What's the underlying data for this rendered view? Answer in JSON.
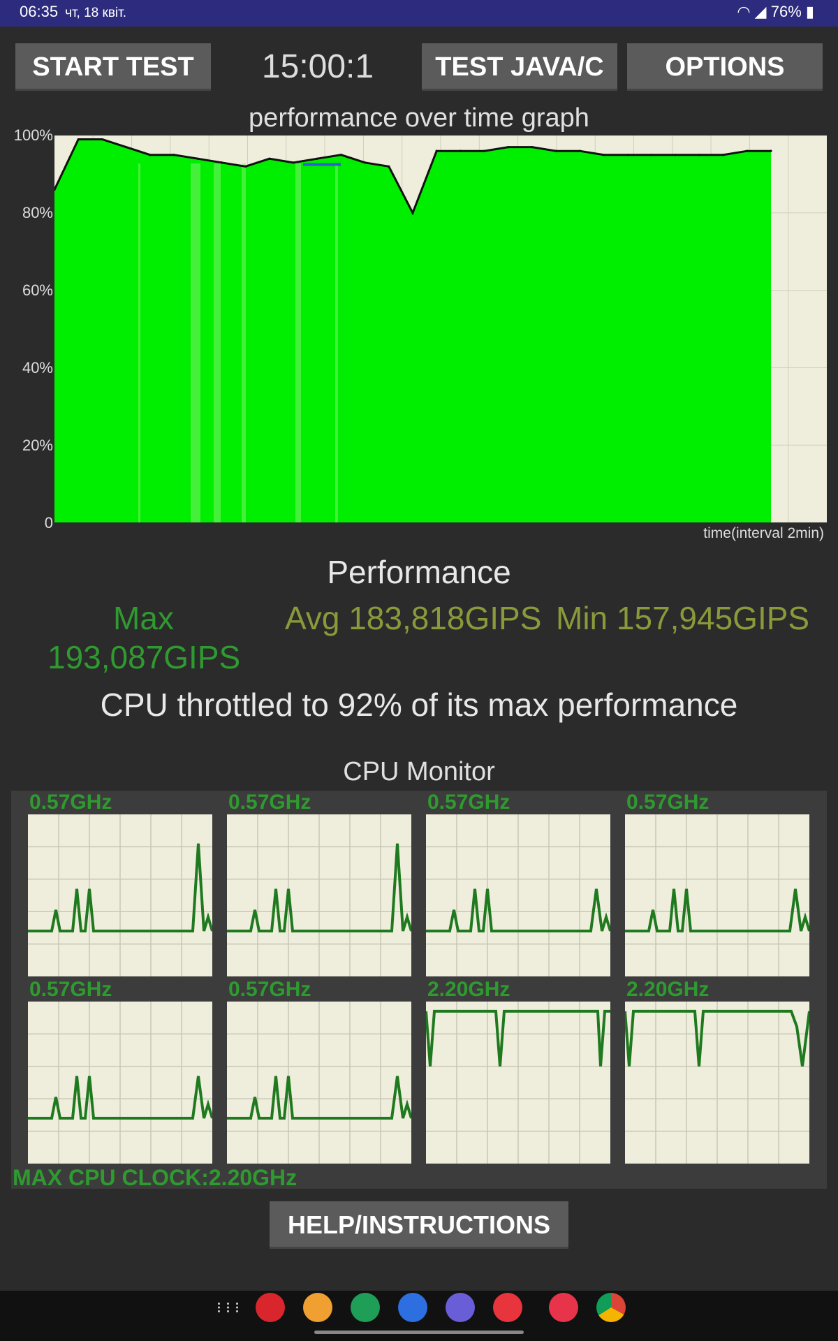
{
  "status_bar": {
    "time": "06:35",
    "date": "чт, 18 квіт.",
    "battery": "76%"
  },
  "buttons": {
    "start_test": "START TEST",
    "test_java_c": "TEST JAVA/C",
    "options": "OPTIONS",
    "help": "HELP/INSTRUCTIONS"
  },
  "timer": "15:00:1",
  "graph": {
    "title": "performance over time graph",
    "y_ticks": [
      "100%",
      "80%",
      "60%",
      "40%",
      "20%",
      "0"
    ],
    "x_label": "time(interval 2min)"
  },
  "chart_data": [
    {
      "type": "area",
      "title": "performance over time graph",
      "xlabel": "time(interval 2min)",
      "ylabel": "",
      "ylim": [
        0,
        100
      ],
      "grid": true,
      "x": [
        0,
        1,
        2,
        3,
        4,
        5,
        6,
        7,
        8,
        9,
        10,
        11,
        12,
        13,
        14,
        15,
        16,
        17,
        18,
        19,
        20,
        21,
        22,
        23,
        24,
        25,
        26,
        27,
        28,
        29,
        30
      ],
      "series": [
        {
          "values": [
            86,
            99,
            99,
            97,
            95,
            95,
            94,
            93,
            92,
            94,
            93,
            94,
            95,
            93,
            92,
            80,
            96,
            96,
            96,
            97,
            97,
            96,
            96,
            95,
            95,
            95,
            95,
            95,
            95,
            96,
            96
          ]
        }
      ],
      "color": "#00ee00"
    },
    {
      "type": "line",
      "title": "CPU Monitor",
      "panels": 8,
      "ylim": [
        0,
        100
      ]
    }
  ],
  "performance": {
    "title": "Performance",
    "max_label": "Max",
    "max_value": "193,087GIPS",
    "avg": "Avg 183,818GIPS",
    "min": "Min 157,945GIPS",
    "throttle": "CPU throttled to 92% of its max performance"
  },
  "cpu_monitor": {
    "title": "CPU Monitor",
    "cores": [
      {
        "freq": "0.57GHz",
        "pattern": "low"
      },
      {
        "freq": "0.57GHz",
        "pattern": "low"
      },
      {
        "freq": "0.57GHz",
        "pattern": "low"
      },
      {
        "freq": "0.57GHz",
        "pattern": "low"
      },
      {
        "freq": "0.57GHz",
        "pattern": "low"
      },
      {
        "freq": "0.57GHz",
        "pattern": "low"
      },
      {
        "freq": "2.20GHz",
        "pattern": "high"
      },
      {
        "freq": "2.20GHz",
        "pattern": "high"
      }
    ],
    "max_clock": "MAX CPU CLOCK:2.20GHz"
  },
  "colors": {
    "accent_green": "#2f9a2f",
    "graph_fill": "#00ee00",
    "graph_bg": "#efeddc",
    "stat_olive": "#8a9a3a"
  },
  "nav_icons": [
    "apps-grid-icon",
    "flipboard-icon",
    "files-icon",
    "phone-icon",
    "messages-icon",
    "internet-icon",
    "youtube-icon",
    "store-icon",
    "chrome-icon"
  ]
}
